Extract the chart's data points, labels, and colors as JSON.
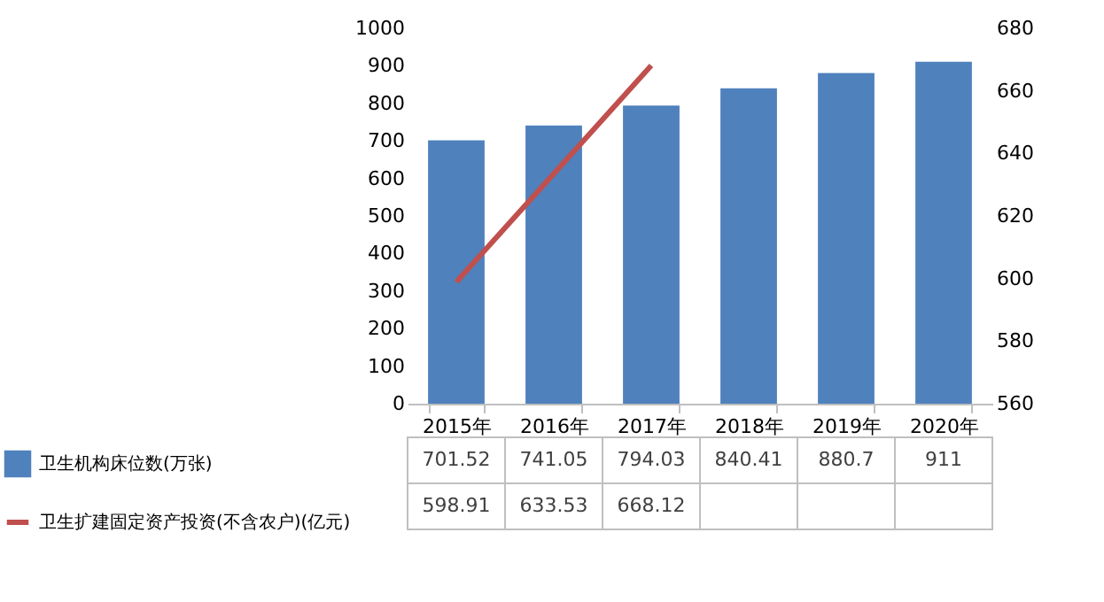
{
  "chart_data": {
    "type": "bar",
    "categories": [
      "2015年",
      "2016年",
      "2017年",
      "2018年",
      "2019年",
      "2020年"
    ],
    "series": [
      {
        "name": "卫生机构床位数(万张)",
        "color": "#4f81bd",
        "values": [
          701.52,
          741.05,
          794.03,
          840.41,
          880.7,
          911
        ]
      },
      {
        "name": "卫生扩建固定资产投资(不含农户)(亿元)",
        "type": "line",
        "axis": "y2",
        "color": "#c0504d",
        "values": [
          598.91,
          633.53,
          668.12,
          null,
          null,
          null
        ]
      }
    ],
    "ylim": [
      0,
      1000
    ],
    "yticks": [
      0,
      100,
      200,
      300,
      400,
      500,
      600,
      700,
      800,
      900,
      1000
    ],
    "y2lim": [
      560,
      680
    ],
    "y2ticks": [
      560,
      580,
      600,
      620,
      640,
      660,
      680
    ],
    "grid": false,
    "legend": "bottom left",
    "data_labels": true
  }
}
